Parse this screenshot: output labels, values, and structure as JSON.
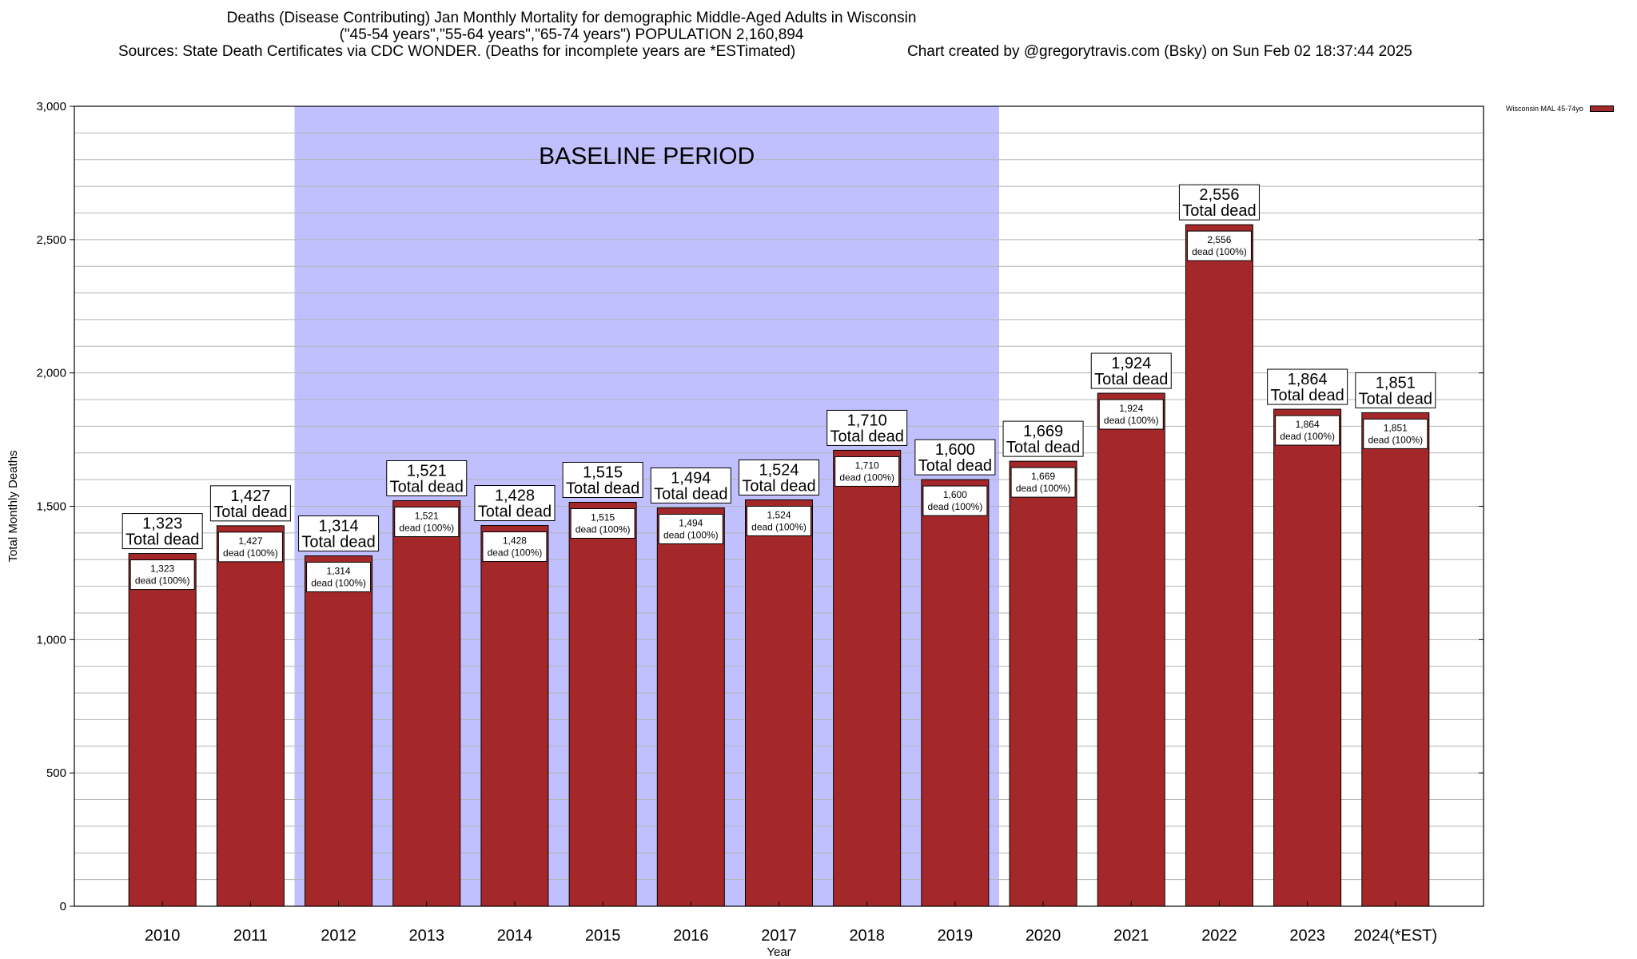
{
  "chart_data": {
    "type": "bar",
    "title": "Deaths (Disease Contributing) Jan Monthly Mortality for demographic Middle-Aged Adults in Wisconsin",
    "subtitle": "(\"45-54 years\",\"55-64 years\",\"65-74 years\") POPULATION 2,160,894",
    "sources": "Sources: State Death Certificates via CDC WONDER. (Deaths for incomplete years are *ESTimated)",
    "credit": "Chart created by @gregorytravis.com (Bsky) on Sun Feb 02 18:37:44 2025",
    "xlabel": "Year",
    "ylabel": "Total Monthly Deaths",
    "ylim": [
      0,
      3000
    ],
    "yticks": [
      0,
      500,
      1000,
      1500,
      2000,
      2500,
      3000
    ],
    "ytick_labels": [
      "0",
      "500",
      "1,000",
      "1,500",
      "2,000",
      "2,500",
      "3,000"
    ],
    "grid": true,
    "categories": [
      "2010",
      "2011",
      "2012",
      "2013",
      "2014",
      "2015",
      "2016",
      "2017",
      "2018",
      "2019",
      "2020",
      "2021",
      "2022",
      "2023",
      "2024(*EST)"
    ],
    "series": [
      {
        "name": "Wisconsin MAL 45-74yo",
        "color": "#a4282a",
        "values": [
          1323,
          1427,
          1314,
          1521,
          1428,
          1515,
          1494,
          1524,
          1710,
          1600,
          1669,
          1924,
          2556,
          1864,
          1851
        ]
      }
    ],
    "top_labels": [
      "1,323",
      "1,427",
      "1,314",
      "1,521",
      "1,428",
      "1,515",
      "1,494",
      "1,524",
      "1,710",
      "1,600",
      "1,669",
      "1,924",
      "2,556",
      "1,864",
      "1,851"
    ],
    "top_label_suffix": "Total dead",
    "inner_label_suffix": "dead (100%)",
    "baseline_period": {
      "label": "BASELINE PERIOD",
      "from_category": "2012",
      "to_category": "2019",
      "color": "#c0c0ff"
    },
    "legend_position": "top-right"
  }
}
